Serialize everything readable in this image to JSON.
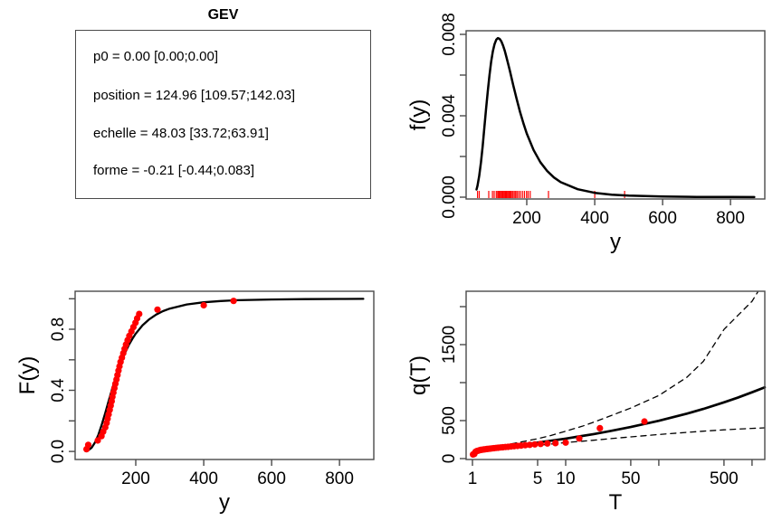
{
  "panel_info": {
    "title": "GEV",
    "params": [
      "p0 = 0.00 [0.00;0.00]",
      "position = 124.96 [109.57;142.03]",
      "echelle = 48.03 [33.72;63.91]",
      "forme = -0.21 [-0.44;0.083]"
    ]
  },
  "colors": {
    "points": "#FF0000",
    "curve": "#000000",
    "frame": "#4a4a4a",
    "text": "#000000"
  },
  "chart_data": [
    {
      "id": "density",
      "type": "line",
      "title": "",
      "xlabel": "y",
      "ylabel": "f(y)",
      "xscale": "linear",
      "xlim": [
        21.3,
        901
      ],
      "ylim": [
        -8.89e-05,
        0.008178
      ],
      "grid": false,
      "xticks": {
        "values": [
          200,
          400,
          600,
          800
        ],
        "labels": [
          "200",
          "400",
          "600",
          "800"
        ]
      },
      "yticks": {
        "values": [
          0,
          0.002,
          0.004,
          0.006,
          0.008
        ],
        "labels": [
          "0.000",
          "",
          "0.004",
          "",
          "0.008"
        ]
      },
      "series": [
        {
          "name": "gev-density-curve",
          "color": "#000000",
          "width": 2.5,
          "style": "solid",
          "x": [
            52,
            55,
            60,
            65,
            70,
            75,
            80,
            85,
            90,
            95,
            100,
            105,
            110,
            115,
            120,
            125,
            130,
            135,
            140,
            145,
            150,
            160,
            170,
            180,
            190,
            200,
            220,
            240,
            260,
            280,
            300,
            350,
            400,
            450,
            500,
            600,
            700,
            800,
            870
          ],
          "y": [
            0.00038,
            0.00057,
            0.00106,
            0.00171,
            0.00251,
            0.0034,
            0.00432,
            0.00519,
            0.00599,
            0.00664,
            0.00716,
            0.00752,
            0.00774,
            0.00782,
            0.00778,
            0.00766,
            0.00745,
            0.00719,
            0.00689,
            0.00656,
            0.00622,
            0.00551,
            0.00483,
            0.0042,
            0.00363,
            0.00313,
            0.00232,
            0.00172,
            0.00129,
            0.00097,
            0.00074,
            0.00039,
            0.000215,
            0.000126,
            7.66e-05,
            3.2e-05,
            1.49e-05,
            7.6e-06,
            5.5e-06
          ]
        }
      ],
      "rug": {
        "color": "#FF0000",
        "values": [
          55,
          60,
          88,
          99,
          104,
          110,
          114,
          117,
          120,
          123,
          126,
          129,
          131,
          134,
          137,
          140,
          143,
          146,
          149,
          152,
          155,
          159,
          163,
          167,
          171,
          176,
          181,
          187,
          193,
          199,
          204,
          210,
          264,
          400,
          488
        ]
      }
    },
    {
      "id": "cdf",
      "type": "line",
      "title": "",
      "xlabel": "y",
      "ylabel": "F(y)",
      "xscale": "linear",
      "xlim": [
        21.3,
        901
      ],
      "ylim": [
        -0.053,
        1.049
      ],
      "grid": false,
      "xticks": {
        "values": [
          200,
          400,
          600,
          800
        ],
        "labels": [
          "200",
          "400",
          "600",
          "800"
        ]
      },
      "yticks": {
        "values": [
          0,
          0.2,
          0.4,
          0.6,
          0.8,
          1.0
        ],
        "labels": [
          "0.0",
          "",
          "0.4",
          "",
          "0.8",
          ""
        ]
      },
      "series": [
        {
          "name": "gev-cdf-curve",
          "color": "#000000",
          "width": 2.3,
          "style": "solid",
          "x": [
            52,
            55,
            60,
            70,
            80,
            90,
            100,
            110,
            120,
            130,
            140,
            150,
            160,
            170,
            180,
            190,
            200,
            220,
            240,
            260,
            280,
            300,
            350,
            400,
            450,
            500,
            600,
            700,
            800,
            870
          ],
          "y": [
            0.002,
            0.0034,
            0.0074,
            0.0247,
            0.0588,
            0.1106,
            0.1767,
            0.2516,
            0.3296,
            0.406,
            0.4779,
            0.5435,
            0.6021,
            0.6539,
            0.699,
            0.738,
            0.7719,
            0.826,
            0.8662,
            0.896,
            0.9184,
            0.9354,
            0.9624,
            0.977,
            0.9853,
            0.9902,
            0.9953,
            0.9975,
            0.9986,
            0.999
          ]
        }
      ],
      "points": {
        "name": "empirical-cdf-points",
        "color": "#FF0000",
        "x": [
          55,
          60,
          88,
          99,
          104,
          110,
          114,
          117,
          120,
          123,
          126,
          129,
          131,
          134,
          137,
          140,
          143,
          146,
          149,
          152,
          155,
          159,
          163,
          167,
          171,
          176,
          181,
          187,
          193,
          199,
          204,
          210,
          264,
          400,
          488
        ],
        "y": [
          0.0143,
          0.0429,
          0.0714,
          0.1,
          0.1286,
          0.1571,
          0.1857,
          0.2143,
          0.2429,
          0.2714,
          0.3,
          0.3286,
          0.3571,
          0.3857,
          0.4143,
          0.4429,
          0.4714,
          0.5,
          0.5286,
          0.5571,
          0.5857,
          0.6143,
          0.6429,
          0.6714,
          0.7,
          0.7286,
          0.7571,
          0.7857,
          0.8143,
          0.8429,
          0.8714,
          0.9,
          0.9286,
          0.9571,
          0.9857
        ]
      }
    },
    {
      "id": "return-level",
      "type": "line",
      "title": "",
      "xlabel": "T",
      "ylabel": "q(T)",
      "xscale": "log10",
      "xlim": [
        0.855,
        1371
      ],
      "ylim": [
        -12,
        2202
      ],
      "grid": false,
      "xticks": {
        "values": [
          1,
          5,
          10,
          50,
          100,
          500,
          1000
        ],
        "labels": [
          "1",
          "5",
          "10",
          "50",
          "",
          "500",
          ""
        ]
      },
      "yticks": {
        "values": [
          0,
          500,
          1000,
          1500,
          2000
        ],
        "labels": [
          "0",
          "500",
          "",
          "1500",
          ""
        ]
      },
      "series": [
        {
          "name": "upper-confidence-band",
          "color": "#000000",
          "width": 1.3,
          "style": "dashed",
          "x": [
            1.01,
            1.05,
            1.1,
            1.2,
            1.5,
            2,
            3,
            5,
            7,
            10,
            15,
            20,
            30,
            50,
            100,
            200,
            300,
            500,
            700,
            1000,
            1150
          ],
          "y": [
            68,
            85,
            97,
            112,
            140,
            168,
            207,
            262,
            305,
            360,
            425,
            480,
            560,
            665,
            830,
            1070,
            1280,
            1700,
            1880,
            2070,
            2190
          ]
        },
        {
          "name": "return-level-curve",
          "color": "#000000",
          "width": 2.7,
          "style": "solid",
          "x": [
            1.01,
            1.05,
            1.1,
            1.2,
            1.5,
            2,
            3,
            5,
            7,
            10,
            15,
            20,
            30,
            50,
            100,
            200,
            300,
            500,
            700,
            1000,
            1369
          ],
          "y": [
            62,
            77,
            87,
            99,
            120,
            143,
            173,
            210,
            235,
            263,
            297,
            323,
            362,
            415,
            497,
            592,
            653,
            740,
            801,
            872,
            938
          ]
        },
        {
          "name": "lower-confidence-band",
          "color": "#000000",
          "width": 1.3,
          "style": "dashed",
          "x": [
            1.01,
            1.05,
            1.1,
            1.2,
            1.5,
            2,
            3,
            5,
            7,
            10,
            15,
            20,
            30,
            50,
            100,
            200,
            300,
            500,
            700,
            1000,
            1369
          ],
          "y": [
            56,
            70,
            79,
            89,
            106,
            124,
            148,
            174,
            192,
            210,
            228,
            242,
            262,
            285,
            316,
            345,
            360,
            378,
            388,
            398,
            405
          ]
        }
      ],
      "points": {
        "name": "empirical-return-points",
        "color": "#FF0000",
        "x": [
          1.014,
          1.045,
          1.077,
          1.111,
          1.148,
          1.186,
          1.228,
          1.273,
          1.321,
          1.373,
          1.429,
          1.489,
          1.556,
          1.628,
          1.707,
          1.795,
          1.892,
          2.0,
          2.121,
          2.258,
          2.414,
          2.593,
          2.8,
          3.043,
          3.333,
          3.684,
          4.118,
          4.667,
          5.385,
          6.364,
          7.778,
          10.0,
          14.0,
          23.33,
          70.0
        ],
        "y": [
          55,
          60,
          88,
          99,
          104,
          110,
          114,
          117,
          120,
          123,
          126,
          129,
          131,
          134,
          137,
          140,
          143,
          146,
          149,
          152,
          155,
          159,
          163,
          167,
          171,
          176,
          181,
          187,
          193,
          199,
          204,
          210,
          264,
          400,
          488
        ]
      }
    }
  ]
}
